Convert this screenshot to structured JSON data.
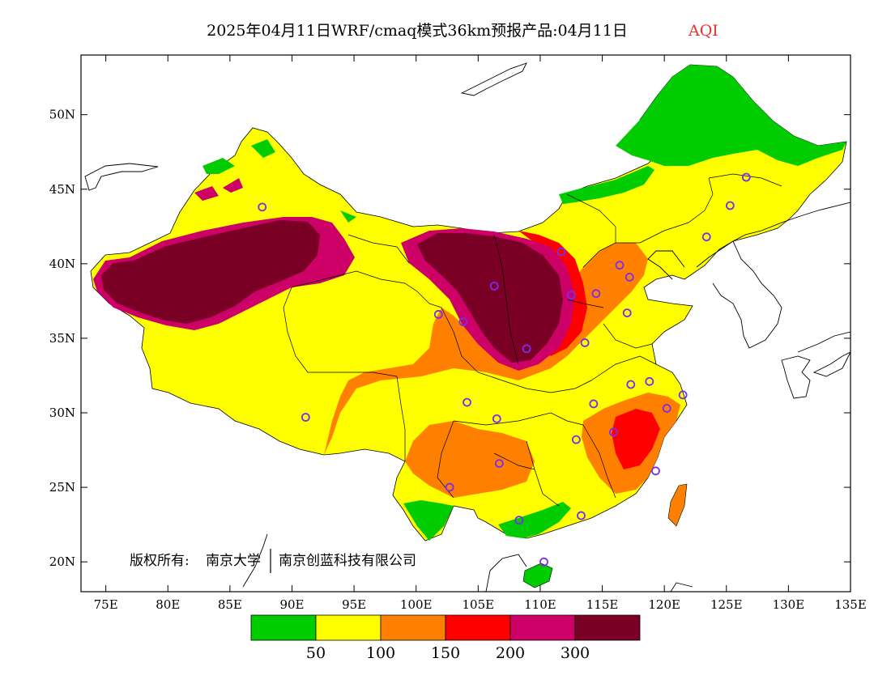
{
  "title": {
    "main": "2025年04月11日WRF/cmaq模式36km预报产品:04月11日",
    "variable": "AQI",
    "variable_color": "#e8332a"
  },
  "copyright": {
    "prefix": "版权所有:",
    "org1": "南京大学",
    "org2": "南京创蓝科技有限公司"
  },
  "map": {
    "lon_range": [
      73,
      135
    ],
    "lat_range": [
      18,
      54
    ],
    "lon_ticks": [
      "75E",
      "80E",
      "85E",
      "90E",
      "95E",
      "100E",
      "105E",
      "110E",
      "115E",
      "120E",
      "125E",
      "130E",
      "135E"
    ],
    "lat_ticks": [
      "20N",
      "25N",
      "30N",
      "35N",
      "40N",
      "45N",
      "50N"
    ]
  },
  "legend": {
    "colors": [
      "#00cc00",
      "#ffff00",
      "#ff8000",
      "#ff0000",
      "#cc0066",
      "#7a0026"
    ],
    "labels": [
      "50",
      "100",
      "150",
      "200",
      "300"
    ]
  },
  "stations": [
    [
      126.6,
      45.8
    ],
    [
      125.3,
      43.9
    ],
    [
      123.4,
      41.8
    ],
    [
      116.4,
      39.9
    ],
    [
      117.2,
      39.1
    ],
    [
      114.5,
      38.0
    ],
    [
      112.5,
      37.9
    ],
    [
      111.7,
      40.8
    ],
    [
      117.0,
      36.7
    ],
    [
      113.6,
      34.7
    ],
    [
      108.9,
      34.3
    ],
    [
      106.3,
      38.5
    ],
    [
      103.8,
      36.1
    ],
    [
      101.8,
      36.6
    ],
    [
      104.1,
      30.7
    ],
    [
      106.5,
      29.6
    ],
    [
      106.7,
      26.6
    ],
    [
      102.7,
      25.0
    ],
    [
      114.3,
      30.6
    ],
    [
      112.9,
      28.2
    ],
    [
      115.9,
      28.7
    ],
    [
      117.3,
      31.9
    ],
    [
      118.8,
      32.1
    ],
    [
      120.2,
      30.3
    ],
    [
      121.5,
      31.2
    ],
    [
      119.3,
      26.1
    ],
    [
      113.3,
      23.1
    ],
    [
      108.3,
      22.8
    ],
    [
      110.3,
      20.0
    ],
    [
      87.6,
      43.8
    ],
    [
      91.1,
      29.7
    ]
  ]
}
